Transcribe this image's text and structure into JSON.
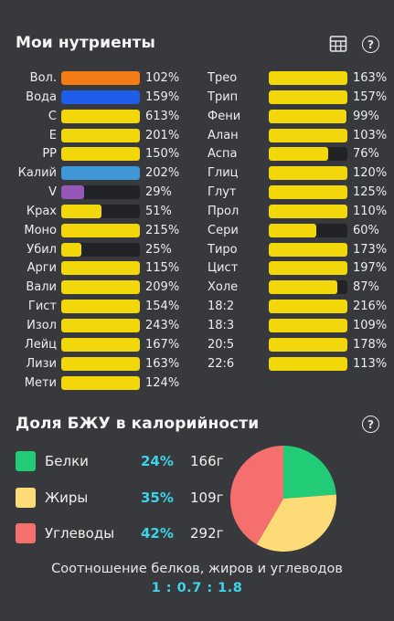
{
  "nutrients": {
    "title": "Мои нутриенты",
    "left": [
      {
        "label": "Вол.",
        "percent": "102%",
        "fill": 1.0,
        "color": "#f47b15"
      },
      {
        "label": "Вода",
        "percent": "159%",
        "fill": 1.0,
        "color": "#1f5ee8"
      },
      {
        "label": "C",
        "percent": "613%",
        "fill": 1.0,
        "color": "#f2d80b"
      },
      {
        "label": "E",
        "percent": "201%",
        "fill": 1.0,
        "color": "#f2d80b"
      },
      {
        "label": "PP",
        "percent": "150%",
        "fill": 1.0,
        "color": "#f2d80b"
      },
      {
        "label": "Калий",
        "percent": "202%",
        "fill": 1.0,
        "color": "#3f97d8"
      },
      {
        "label": "V",
        "percent": "29%",
        "fill": 0.29,
        "color": "#9558b8"
      },
      {
        "label": "Крах",
        "percent": "51%",
        "fill": 0.51,
        "color": "#f2d80b"
      },
      {
        "label": "Моно",
        "percent": "215%",
        "fill": 1.0,
        "color": "#f2d80b"
      },
      {
        "label": "Убил",
        "percent": "25%",
        "fill": 0.25,
        "color": "#f2d80b"
      },
      {
        "label": "Арги",
        "percent": "115%",
        "fill": 1.0,
        "color": "#f2d80b"
      },
      {
        "label": "Вали",
        "percent": "209%",
        "fill": 1.0,
        "color": "#f2d80b"
      },
      {
        "label": "Гист",
        "percent": "154%",
        "fill": 1.0,
        "color": "#f2d80b"
      },
      {
        "label": "Изол",
        "percent": "243%",
        "fill": 1.0,
        "color": "#f2d80b"
      },
      {
        "label": "Лейц",
        "percent": "167%",
        "fill": 1.0,
        "color": "#f2d80b"
      },
      {
        "label": "Лизи",
        "percent": "163%",
        "fill": 1.0,
        "color": "#f2d80b"
      },
      {
        "label": "Мети",
        "percent": "124%",
        "fill": 1.0,
        "color": "#f2d80b"
      }
    ],
    "right": [
      {
        "label": "Трео",
        "percent": "163%",
        "fill": 1.0,
        "color": "#f2d80b"
      },
      {
        "label": "Трип",
        "percent": "157%",
        "fill": 1.0,
        "color": "#f2d80b"
      },
      {
        "label": "Фени",
        "percent": "99%",
        "fill": 0.99,
        "color": "#f2d80b"
      },
      {
        "label": "Алан",
        "percent": "103%",
        "fill": 1.0,
        "color": "#f2d80b"
      },
      {
        "label": "Аспа",
        "percent": "76%",
        "fill": 0.76,
        "color": "#f2d80b"
      },
      {
        "label": "Глиц",
        "percent": "120%",
        "fill": 1.0,
        "color": "#f2d80b"
      },
      {
        "label": "Глут",
        "percent": "125%",
        "fill": 1.0,
        "color": "#f2d80b"
      },
      {
        "label": "Прол",
        "percent": "110%",
        "fill": 1.0,
        "color": "#f2d80b"
      },
      {
        "label": "Сери",
        "percent": "60%",
        "fill": 0.6,
        "color": "#f2d80b"
      },
      {
        "label": "Тиро",
        "percent": "173%",
        "fill": 1.0,
        "color": "#f2d80b"
      },
      {
        "label": "Цист",
        "percent": "197%",
        "fill": 1.0,
        "color": "#f2d80b"
      },
      {
        "label": "Холе",
        "percent": "87%",
        "fill": 0.87,
        "color": "#f2d80b"
      },
      {
        "label": "18:2",
        "percent": "216%",
        "fill": 1.0,
        "color": "#f2d80b"
      },
      {
        "label": "18:3",
        "percent": "109%",
        "fill": 1.0,
        "color": "#f2d80b"
      },
      {
        "label": "20:5",
        "percent": "178%",
        "fill": 1.0,
        "color": "#f2d80b"
      },
      {
        "label": "22:6",
        "percent": "113%",
        "fill": 1.0,
        "color": "#f2d80b"
      }
    ],
    "icons": [
      "table-icon",
      "help-icon"
    ],
    "help_glyph": "?"
  },
  "macros": {
    "title": "Доля БЖУ в калорийности",
    "help_glyph": "?",
    "items": [
      {
        "name": "Белки",
        "percent": "24%",
        "grams": "166г",
        "color": "#22cc77"
      },
      {
        "name": "Жиры",
        "percent": "35%",
        "grams": "109г",
        "color": "#fddc78"
      },
      {
        "name": "Углеводы",
        "percent": "42%",
        "grams": "292г",
        "color": "#f56f6f"
      }
    ],
    "chart_data": {
      "type": "pie",
      "categories": [
        "Белки",
        "Жиры",
        "Углеводы"
      ],
      "values": [
        24,
        35,
        42
      ],
      "colors": [
        "#22cc77",
        "#fddc78",
        "#f56f6f"
      ]
    },
    "ratio_caption": "Соотношение белков, жиров и углеводов",
    "ratio_value": "1 : 0.7 : 1.8"
  }
}
